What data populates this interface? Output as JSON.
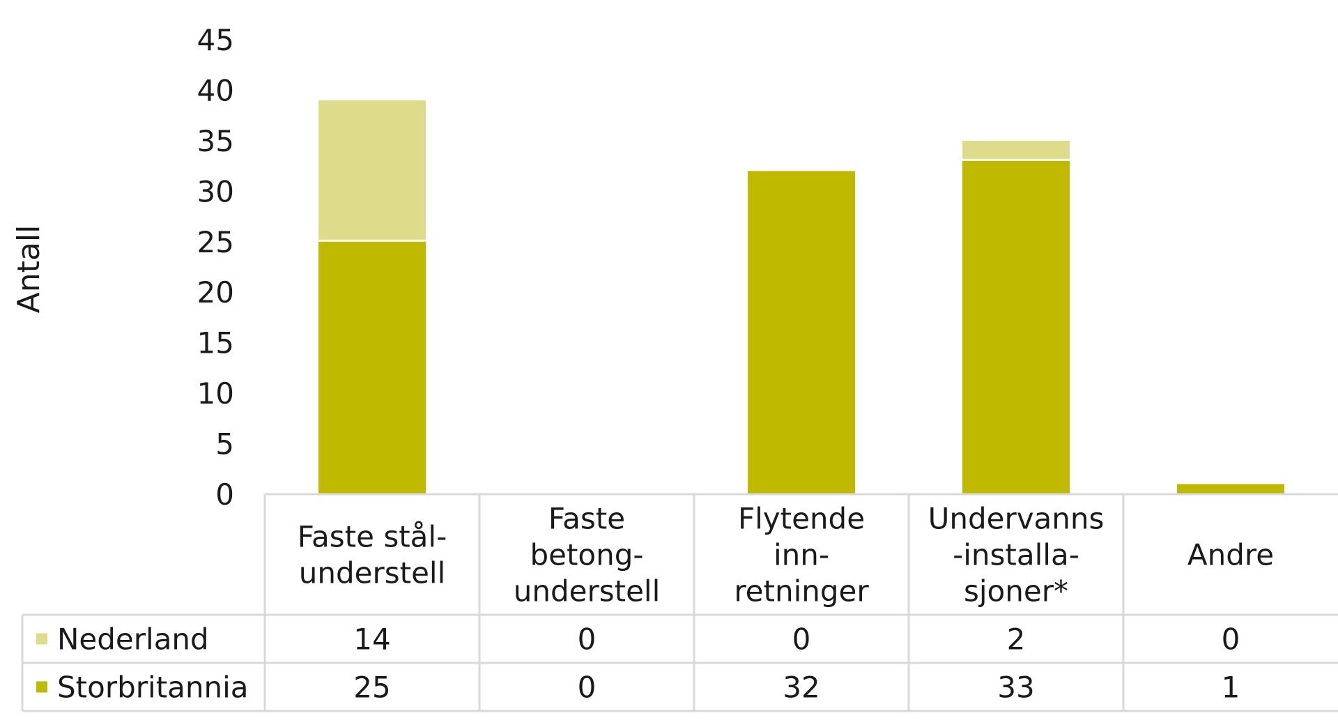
{
  "chart_data": {
    "type": "bar",
    "stacked": true,
    "ylabel": "Antall",
    "ylim": [
      0,
      45
    ],
    "yticks": [
      0,
      5,
      10,
      15,
      20,
      25,
      30,
      35,
      40,
      45
    ],
    "categories": [
      [
        "Faste stål-",
        "understell"
      ],
      [
        "Faste",
        "betong-",
        "understell"
      ],
      [
        "Flytende",
        "inn-",
        "retninger"
      ],
      [
        "Undervanns",
        "-installa-",
        "sjoner*"
      ],
      [
        "Andre"
      ]
    ],
    "series": [
      {
        "name": "Storbritannia",
        "color": "#BFBA00",
        "values": [
          25,
          0,
          32,
          33,
          1
        ]
      },
      {
        "name": "Nederland",
        "color": "#DEDC8A",
        "values": [
          14,
          0,
          0,
          2,
          0
        ]
      }
    ],
    "data_table": {
      "row_order": [
        "Nederland",
        "Storbritannia"
      ]
    },
    "grid": false
  }
}
